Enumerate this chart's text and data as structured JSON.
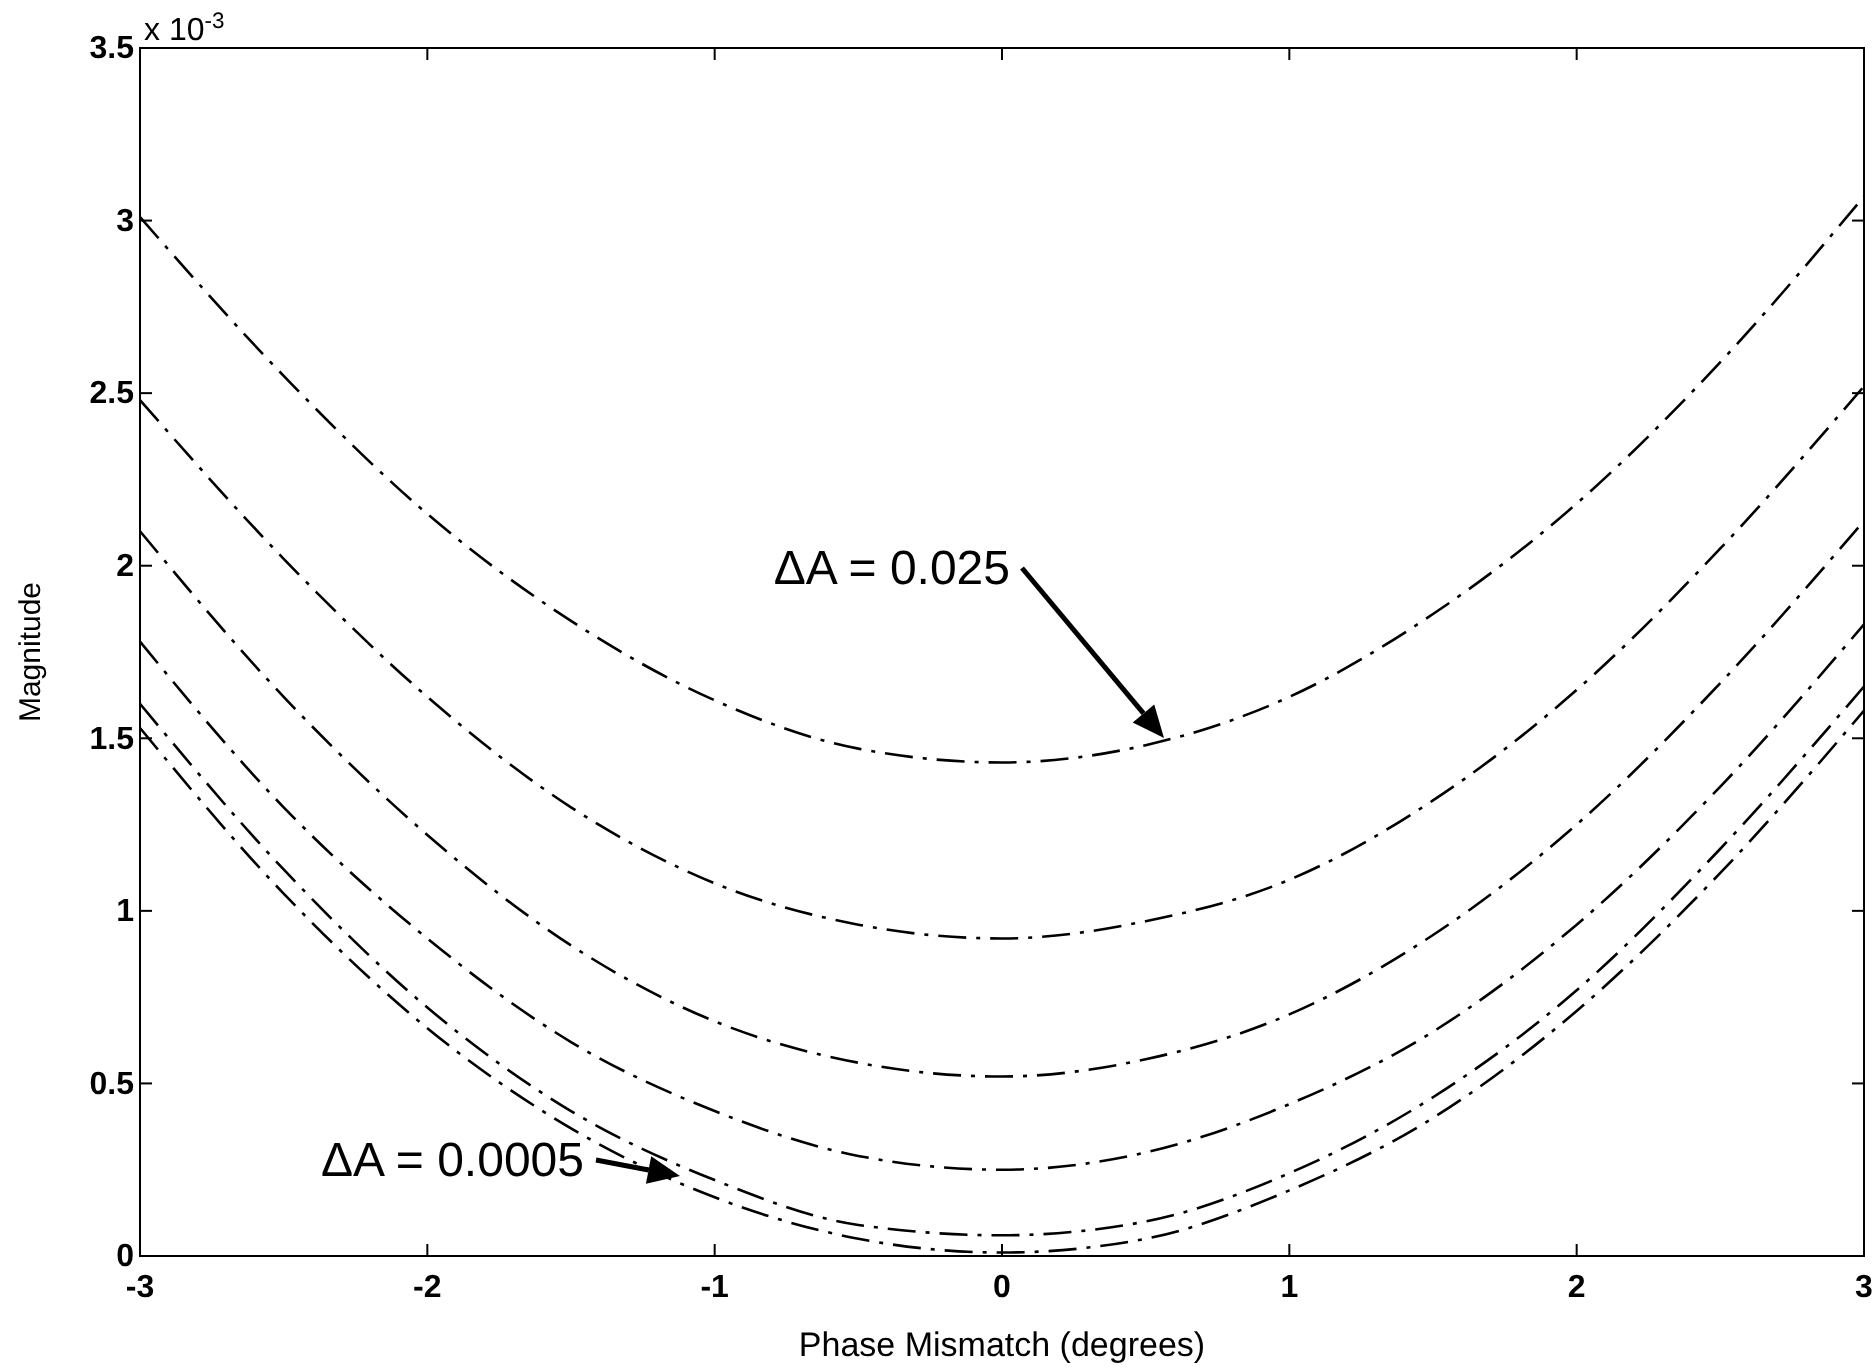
{
  "chart_data": {
    "type": "line",
    "xlabel": "Phase Mismatch (degrees)",
    "ylabel": "Magnitude",
    "x": [
      -3,
      -2.5,
      -2,
      -1.5,
      -1,
      -0.5,
      0,
      0.5,
      1,
      1.5,
      2,
      2.5,
      3
    ],
    "series": [
      {
        "color": "#000000",
        "values": [
          3.01,
          2.55,
          2.15,
          1.84,
          1.61,
          1.47,
          1.43,
          1.48,
          1.62,
          1.86,
          2.18,
          2.59,
          3.07
        ]
      },
      {
        "color": "#000000",
        "values": [
          2.48,
          2.02,
          1.62,
          1.3,
          1.08,
          0.96,
          0.92,
          0.97,
          1.09,
          1.32,
          1.64,
          2.05,
          2.52
        ]
      },
      {
        "color": "#000000",
        "values": [
          2.1,
          1.62,
          1.22,
          0.9,
          0.68,
          0.56,
          0.52,
          0.57,
          0.7,
          0.93,
          1.25,
          1.66,
          2.13
        ]
      },
      {
        "color": "#000000",
        "values": [
          1.78,
          1.3,
          0.92,
          0.62,
          0.42,
          0.29,
          0.25,
          0.3,
          0.44,
          0.65,
          0.96,
          1.36,
          1.83
        ]
      },
      {
        "color": "#000000",
        "values": [
          1.6,
          1.12,
          0.72,
          0.42,
          0.22,
          0.09,
          0.06,
          0.1,
          0.24,
          0.46,
          0.77,
          1.18,
          1.65
        ]
      },
      {
        "color": "#000000",
        "values": [
          1.53,
          1.05,
          0.66,
          0.37,
          0.17,
          0.05,
          0.01,
          0.05,
          0.19,
          0.4,
          0.71,
          1.11,
          1.58
        ]
      }
    ],
    "xlim": [
      -3,
      3
    ],
    "xticks": [
      -3,
      -2,
      -1,
      0,
      1,
      2,
      3
    ],
    "ylim": [
      0,
      3.5
    ],
    "yticks": [
      0,
      0.5,
      1,
      1.5,
      2,
      2.5,
      3,
      3.5
    ],
    "line_style": "dashed",
    "grid": false,
    "annotations": [
      "x 10$^{-3}$",
      "ΔA = 0.025",
      "ΔA = 0.0005"
    ]
  }
}
